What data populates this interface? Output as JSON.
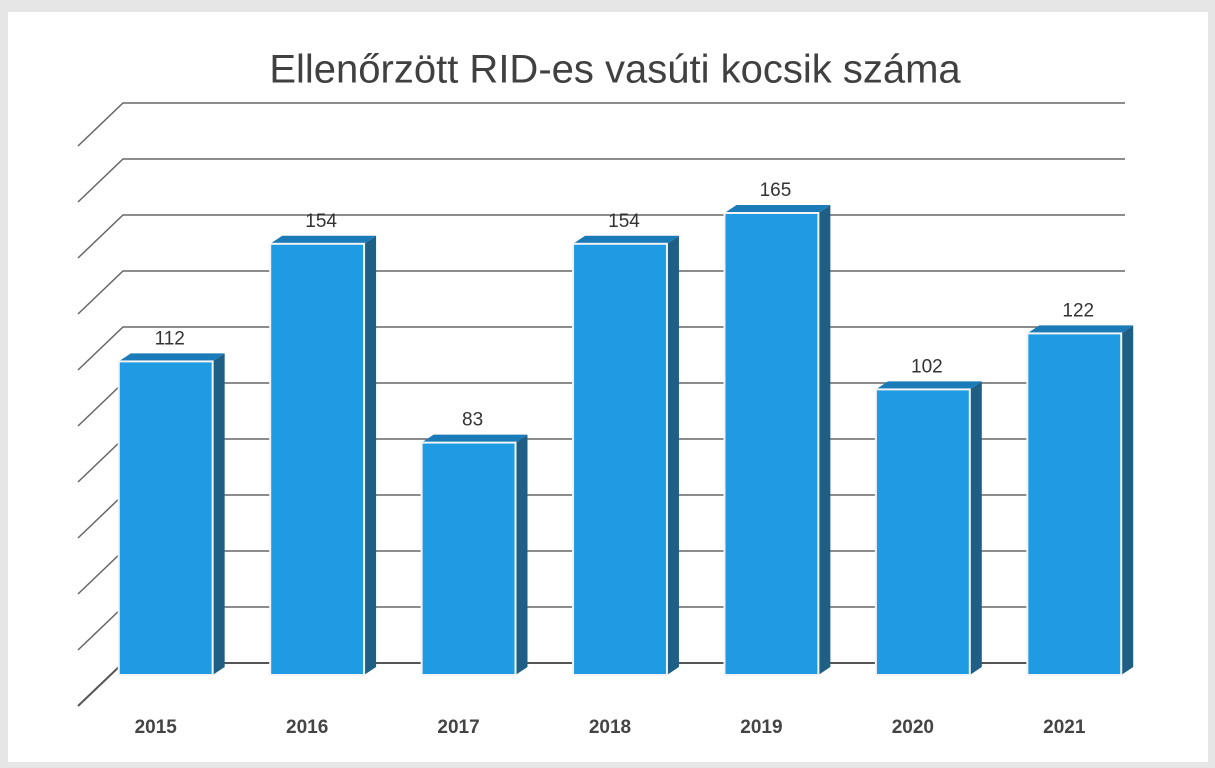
{
  "chart_data": {
    "type": "bar",
    "title": "Ellenőrzött RID-es vasúti kocsik száma",
    "categories": [
      "2015",
      "2016",
      "2017",
      "2018",
      "2019",
      "2020",
      "2021"
    ],
    "values": [
      112,
      154,
      83,
      154,
      165,
      102,
      122
    ],
    "color": "#1e9be2",
    "ylim": [
      0,
      200
    ],
    "yticks": [
      0,
      20,
      40,
      60,
      80,
      100,
      120,
      140,
      160,
      180,
      200
    ],
    "grid": true
  }
}
